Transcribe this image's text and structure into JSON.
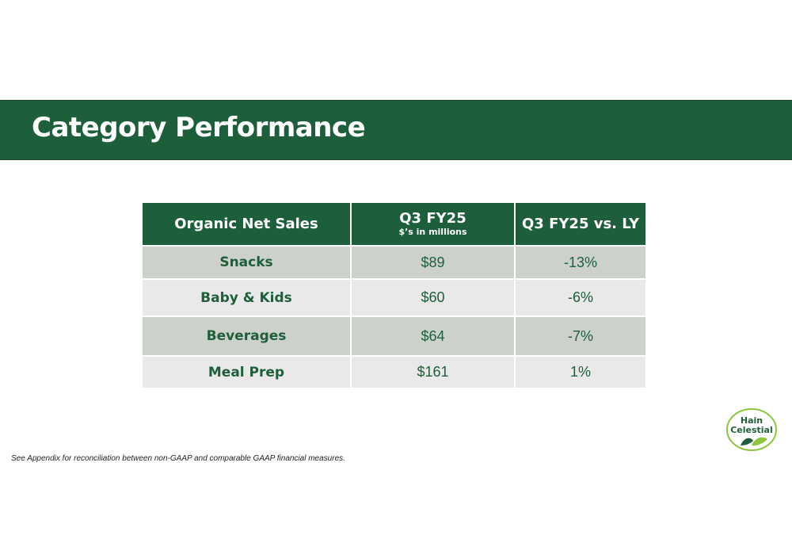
{
  "slide": {
    "title": "Category Performance"
  },
  "table": {
    "headers": {
      "col1": "Organic Net Sales",
      "col2_main": "Q3 FY25",
      "col2_sub": "$’s in millions",
      "col3": "Q3 FY25 vs. LY"
    },
    "rows": [
      {
        "category": "Snacks",
        "sales": "$89",
        "change": "-13%"
      },
      {
        "category": "Baby & Kids",
        "sales": "$60",
        "change": "-6%"
      },
      {
        "category": "Beverages",
        "sales": "$64",
        "change": "-7%"
      },
      {
        "category": "Meal Prep",
        "sales": "$161",
        "change": "1%"
      }
    ]
  },
  "footnote": "See Appendix for reconciliation between non-GAAP and comparable GAAP financial measures.",
  "logo": {
    "line1": "Hain",
    "line2": "Celestial",
    "icon": "leaf-icon"
  },
  "colors": {
    "brand_green": "#1e5f3b",
    "row_dark": "#ccd1cc",
    "row_light": "#e8e9e8",
    "logo_leaf": "#8cc63f"
  }
}
